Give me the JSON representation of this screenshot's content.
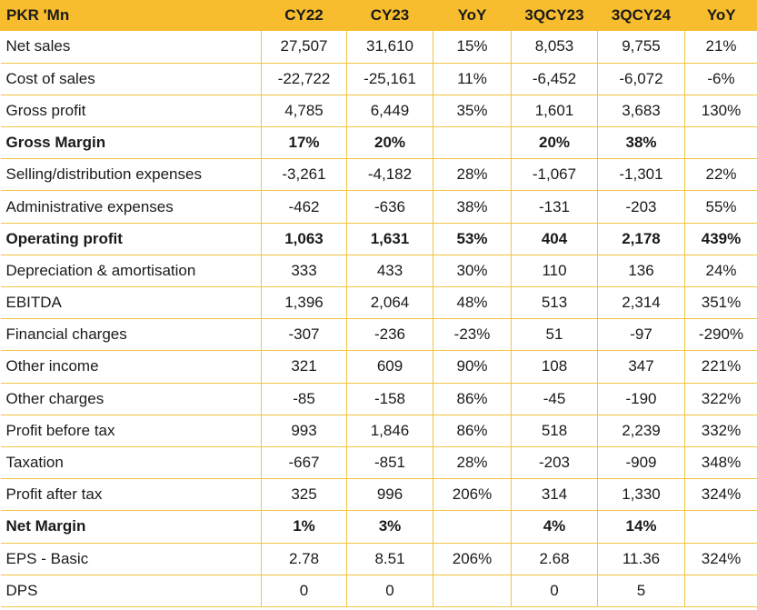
{
  "table": {
    "headers": [
      "PKR 'Mn",
      "CY22",
      "CY23",
      "YoY",
      "3QCY23",
      "3QCY24",
      "YoY"
    ],
    "rows": [
      {
        "label": "Net sales",
        "bold": false,
        "cells": [
          "27,507",
          "31,610",
          "15%",
          "8,053",
          "9,755",
          "21%"
        ]
      },
      {
        "label": "Cost of sales",
        "bold": false,
        "cells": [
          "-22,722",
          "-25,161",
          "11%",
          "-6,452",
          "-6,072",
          "-6%"
        ]
      },
      {
        "label": "Gross profit",
        "bold": false,
        "cells": [
          "4,785",
          "6,449",
          "35%",
          "1,601",
          "3,683",
          "130%"
        ]
      },
      {
        "label": "Gross Margin",
        "bold": true,
        "cells": [
          "17%",
          "20%",
          "",
          "20%",
          "38%",
          ""
        ]
      },
      {
        "label": "Selling/distribution expenses",
        "bold": false,
        "cells": [
          "-3,261",
          "-4,182",
          "28%",
          "-1,067",
          "-1,301",
          "22%"
        ]
      },
      {
        "label": "Administrative expenses",
        "bold": false,
        "cells": [
          "-462",
          "-636",
          "38%",
          "-131",
          "-203",
          "55%"
        ]
      },
      {
        "label": "Operating profit",
        "bold": true,
        "cells": [
          "1,063",
          "1,631",
          "53%",
          "404",
          "2,178",
          "439%"
        ]
      },
      {
        "label": "Depreciation & amortisation",
        "bold": false,
        "cells": [
          "333",
          "433",
          "30%",
          "110",
          "136",
          "24%"
        ]
      },
      {
        "label": "EBITDA",
        "bold": false,
        "cells": [
          "1,396",
          "2,064",
          "48%",
          "513",
          "2,314",
          "351%"
        ]
      },
      {
        "label": "Financial charges",
        "bold": false,
        "cells": [
          "-307",
          "-236",
          "-23%",
          "51",
          "-97",
          "-290%"
        ]
      },
      {
        "label": "Other income",
        "bold": false,
        "cells": [
          "321",
          "609",
          "90%",
          "108",
          "347",
          "221%"
        ]
      },
      {
        "label": "Other charges",
        "bold": false,
        "cells": [
          "-85",
          "-158",
          "86%",
          "-45",
          "-190",
          "322%"
        ]
      },
      {
        "label": "Profit before tax",
        "bold": false,
        "cells": [
          "993",
          "1,846",
          "86%",
          "518",
          "2,239",
          "332%"
        ]
      },
      {
        "label": "Taxation",
        "bold": false,
        "cells": [
          "-667",
          "-851",
          "28%",
          "-203",
          "-909",
          "348%"
        ]
      },
      {
        "label": "Profit after tax",
        "bold": false,
        "cells": [
          "325",
          "996",
          "206%",
          "314",
          "1,330",
          "324%"
        ]
      },
      {
        "label": "Net Margin",
        "bold": true,
        "cells": [
          "1%",
          "3%",
          "",
          "4%",
          "14%",
          ""
        ]
      },
      {
        "label": "EPS - Basic",
        "bold": false,
        "cells": [
          "2.78",
          "8.51",
          "206%",
          "2.68",
          "11.36",
          "324%"
        ]
      },
      {
        "label": "DPS",
        "bold": false,
        "cells": [
          "0",
          "0",
          "",
          "0",
          "5",
          ""
        ]
      }
    ]
  },
  "colors": {
    "header_bg": "#f7bd2e",
    "grid_line": "#f4c441",
    "text": "#1a1a1a"
  }
}
